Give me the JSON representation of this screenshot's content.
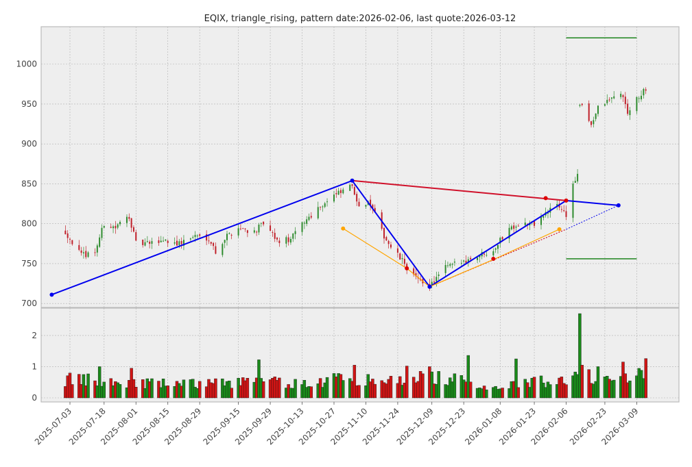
{
  "chart_data": {
    "type": "candlestick",
    "title": "EQIX, triangle_rising, pattern date:2026-02-06, last quote:2026-03-12",
    "price_ylim": [
      695,
      1047
    ],
    "price_yticks": [
      700,
      750,
      800,
      850,
      900,
      950,
      1000
    ],
    "volume_ylim": [
      0,
      2.7
    ],
    "volume_yticks": [
      0,
      1,
      2
    ],
    "x_start": "2025-07-03",
    "x_end": "2026-03-14",
    "xticks": [
      "2025-07-03",
      "2025-07-18",
      "2025-08-01",
      "2025-08-15",
      "2025-08-29",
      "2025-09-15",
      "2025-09-29",
      "2025-10-13",
      "2025-10-27",
      "2025-11-10",
      "2025-11-24",
      "2025-12-09",
      "2025-12-23",
      "2026-01-08",
      "2026-01-23",
      "2026-02-06",
      "2026-02-23",
      "2026-03-09"
    ],
    "grid": true,
    "colors": {
      "up": "#2e8b2e",
      "down": "#c0202a",
      "volume_up": "#1a8a1a",
      "volume_down": "#d01515",
      "background": "#eeeeee"
    },
    "anchors": [
      [
        "2025-07-01",
        790
      ],
      [
        "2025-07-08",
        760
      ],
      [
        "2025-07-14",
        765
      ],
      [
        "2025-07-18",
        800
      ],
      [
        "2025-07-23",
        795
      ],
      [
        "2025-07-29",
        810
      ],
      [
        "2025-08-01",
        775
      ],
      [
        "2025-08-08",
        775
      ],
      [
        "2025-08-13",
        780
      ],
      [
        "2025-08-20",
        775
      ],
      [
        "2025-08-27",
        785
      ],
      [
        "2025-09-02",
        782
      ],
      [
        "2025-09-05",
        765
      ],
      [
        "2025-09-10",
        785
      ],
      [
        "2025-09-15",
        795
      ],
      [
        "2025-09-22",
        790
      ],
      [
        "2025-09-26",
        800
      ],
      [
        "2025-10-02",
        778
      ],
      [
        "2025-10-08",
        780
      ],
      [
        "2025-10-13",
        800
      ],
      [
        "2025-10-20",
        820
      ],
      [
        "2025-10-27",
        835
      ],
      [
        "2025-10-31",
        840
      ],
      [
        "2025-11-03",
        850
      ],
      [
        "2025-11-07",
        825
      ],
      [
        "2025-11-12",
        825
      ],
      [
        "2025-11-17",
        790
      ],
      [
        "2025-11-21",
        770
      ],
      [
        "2025-11-27",
        750
      ],
      [
        "2025-12-03",
        728
      ],
      [
        "2025-12-09",
        725
      ],
      [
        "2025-12-15",
        745
      ],
      [
        "2025-12-22",
        752
      ],
      [
        "2025-12-29",
        760
      ],
      [
        "2026-01-05",
        768
      ],
      [
        "2026-01-12",
        795
      ],
      [
        "2026-01-16",
        800
      ],
      [
        "2026-01-23",
        800
      ],
      [
        "2026-01-29",
        815
      ],
      [
        "2026-02-02",
        825
      ],
      [
        "2026-02-05",
        815
      ],
      [
        "2026-02-06",
        810
      ],
      [
        "2026-02-09",
        850
      ],
      [
        "2026-02-11",
        860
      ],
      [
        "2026-02-12",
        950
      ],
      [
        "2026-02-17",
        925
      ],
      [
        "2026-02-20",
        945
      ],
      [
        "2026-02-25",
        955
      ],
      [
        "2026-03-02",
        965
      ],
      [
        "2026-03-05",
        940
      ],
      [
        "2026-03-09",
        955
      ],
      [
        "2026-03-12",
        965
      ]
    ],
    "volume_anchors": [
      [
        "2025-07-01",
        0.6
      ],
      [
        "2025-07-18",
        0.55
      ],
      [
        "2025-08-01",
        0.5
      ],
      [
        "2025-08-20",
        0.45
      ],
      [
        "2025-09-10",
        0.5
      ],
      [
        "2025-09-24",
        0.55
      ],
      [
        "2025-10-15",
        0.45
      ],
      [
        "2025-11-03",
        0.7
      ],
      [
        "2025-11-15",
        0.5
      ],
      [
        "2025-12-05",
        0.7
      ],
      [
        "2025-12-18",
        0.6
      ],
      [
        "2026-01-05",
        0.35
      ],
      [
        "2026-01-20",
        0.5
      ],
      [
        "2026-02-05",
        0.6
      ],
      [
        "2026-02-20",
        0.75
      ],
      [
        "2026-03-12",
        0.75
      ]
    ],
    "volume_spikes": [
      [
        "2025-07-16",
        1.0
      ],
      [
        "2025-07-30",
        0.95
      ],
      [
        "2025-09-24",
        1.22
      ],
      [
        "2025-11-05",
        1.05
      ],
      [
        "2025-11-28",
        1.02
      ],
      [
        "2025-12-08",
        1.0
      ],
      [
        "2025-12-25",
        1.36
      ],
      [
        "2026-01-15",
        1.25
      ],
      [
        "2026-02-12",
        2.7
      ],
      [
        "2026-02-13",
        1.05
      ],
      [
        "2026-02-20",
        1.0
      ],
      [
        "2026-03-03",
        1.15
      ],
      [
        "2026-03-13",
        1.26
      ]
    ],
    "overlays": [
      {
        "name": "support-line",
        "color": "#0000ee",
        "width": 2,
        "dash": "",
        "points": [
          [
            "2025-06-25",
            711
          ],
          [
            "2025-11-04",
            854
          ],
          [
            "2025-12-08",
            721
          ],
          [
            "2026-02-06",
            829
          ],
          [
            "2026-03-01",
            823
          ]
        ]
      },
      {
        "name": "upper-trendline",
        "color": "#d0102a",
        "width": 2,
        "dash": "",
        "points": [
          [
            "2025-11-04",
            854
          ],
          [
            "2026-02-06",
            829
          ]
        ]
      },
      {
        "name": "upper-projection",
        "color": "#0000ee",
        "width": 1,
        "dash": "2,2",
        "points": [
          [
            "2026-02-06",
            829
          ],
          [
            "2026-03-01",
            823
          ]
        ]
      },
      {
        "name": "lower-trendline",
        "color": "#d0102a",
        "width": 1.2,
        "dash": "2,2",
        "points": [
          [
            "2025-12-08",
            721
          ],
          [
            "2026-02-06",
            793
          ]
        ]
      },
      {
        "name": "lower-projection",
        "color": "#0000ee",
        "width": 1,
        "dash": "2,2",
        "points": [
          [
            "2026-02-06",
            793
          ],
          [
            "2026-03-01",
            823
          ]
        ]
      },
      {
        "name": "orange-path",
        "color": "#ffa500",
        "width": 1.2,
        "dash": "",
        "points": [
          [
            "2025-10-31",
            794
          ],
          [
            "2025-11-28",
            744
          ],
          [
            "2025-12-08",
            721
          ],
          [
            "2026-01-05",
            755
          ],
          [
            "2026-02-03",
            793
          ]
        ]
      },
      {
        "name": "green-target-top",
        "color": "#0a7a0a",
        "width": 1.3,
        "dash": "",
        "points": [
          [
            "2026-02-06",
            1033
          ],
          [
            "2026-03-09",
            1033
          ]
        ]
      },
      {
        "name": "green-target-bottom",
        "color": "#0a7a0a",
        "width": 1.3,
        "dash": "",
        "points": [
          [
            "2026-02-06",
            756
          ],
          [
            "2026-03-09",
            756
          ]
        ]
      }
    ],
    "markers": [
      {
        "color": "#0000ee",
        "r": 3,
        "points": [
          [
            "2025-06-25",
            711
          ],
          [
            "2025-11-04",
            854
          ],
          [
            "2025-12-08",
            721
          ],
          [
            "2026-03-01",
            823
          ]
        ]
      },
      {
        "color": "#dd0000",
        "r": 3,
        "points": [
          [
            "2026-02-06",
            829
          ],
          [
            "2026-01-28",
            832
          ],
          [
            "2025-11-28",
            744
          ],
          [
            "2026-01-05",
            756
          ]
        ]
      },
      {
        "color": "#ffa500",
        "r": 3,
        "points": [
          [
            "2025-10-31",
            794
          ],
          [
            "2026-02-03",
            793
          ]
        ]
      }
    ]
  }
}
